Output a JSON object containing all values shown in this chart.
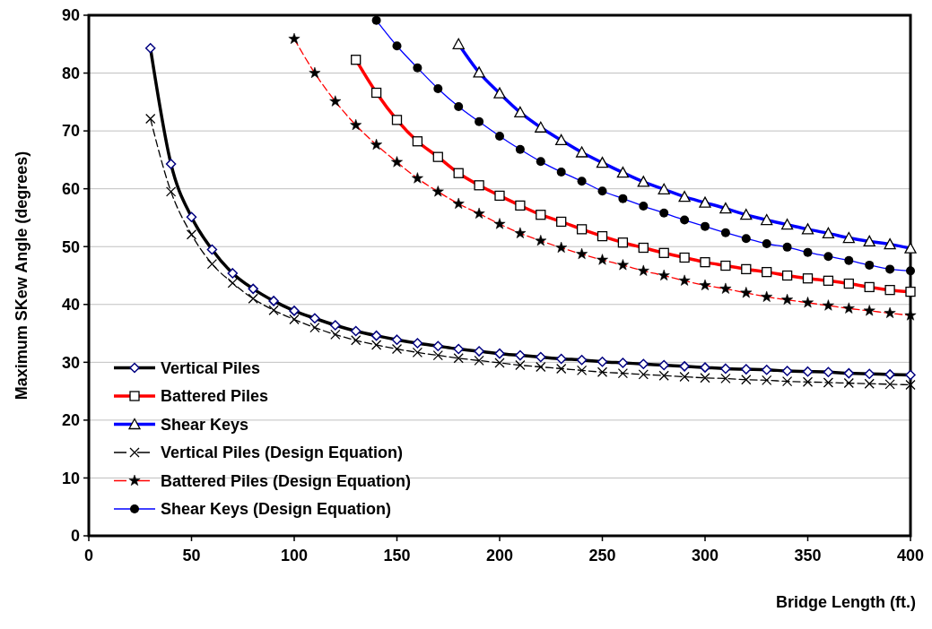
{
  "chart_data": {
    "type": "line",
    "xlabel": "Bridge Length (ft.)",
    "ylabel": "Maximum SKew Angle (degrees)",
    "xlim": [
      0,
      400
    ],
    "xticks": [
      0,
      50,
      100,
      150,
      200,
      250,
      300,
      350,
      400
    ],
    "ylim": [
      0,
      90
    ],
    "yticks": [
      0,
      10,
      20,
      30,
      40,
      50,
      60,
      70,
      80,
      90
    ],
    "grid": "y",
    "legend": "bottom left",
    "series": [
      {
        "name": "Vertical Piles",
        "color": "#000000",
        "marker": "diamond",
        "line_style": "solid",
        "x": [
          30,
          40,
          50,
          60,
          70,
          80,
          90,
          100,
          110,
          120,
          130,
          140,
          150,
          160,
          170,
          180,
          190,
          200,
          210,
          220,
          230,
          240,
          250,
          260,
          270,
          280,
          290,
          300,
          310,
          320,
          330,
          340,
          350,
          360,
          370,
          380,
          390,
          400
        ],
        "values": [
          84.3,
          64.3,
          55.1,
          49.5,
          45.4,
          42.7,
          40.6,
          38.9,
          37.6,
          36.4,
          35.4,
          34.6,
          33.9,
          33.3,
          32.8,
          32.3,
          31.9,
          31.5,
          31.2,
          30.9,
          30.6,
          30.4,
          30.1,
          29.9,
          29.7,
          29.5,
          29.3,
          29.1,
          28.9,
          28.8,
          28.7,
          28.5,
          28.4,
          28.3,
          28.1,
          28.0,
          27.9,
          27.8
        ]
      },
      {
        "name": "Battered Piles",
        "color": "#ff0000",
        "marker": "square",
        "line_style": "solid",
        "x": [
          130,
          140,
          150,
          160,
          170,
          180,
          190,
          200,
          210,
          220,
          230,
          240,
          250,
          260,
          270,
          280,
          290,
          300,
          310,
          320,
          330,
          340,
          350,
          360,
          370,
          380,
          390,
          400
        ],
        "values": [
          82.3,
          76.6,
          71.9,
          68.2,
          65.5,
          62.7,
          60.6,
          58.8,
          57.1,
          55.5,
          54.3,
          53.0,
          51.8,
          50.7,
          49.8,
          48.9,
          48.1,
          47.3,
          46.7,
          46.1,
          45.6,
          45.0,
          44.5,
          44.1,
          43.6,
          43.0,
          42.5,
          42.2
        ]
      },
      {
        "name": "Shear Keys",
        "color": "#0000ff",
        "marker": "triangle",
        "line_style": "solid",
        "x": [
          180,
          190,
          200,
          210,
          220,
          230,
          240,
          250,
          260,
          270,
          280,
          290,
          300,
          310,
          320,
          330,
          340,
          350,
          360,
          370,
          380,
          390,
          400
        ],
        "values": [
          85.0,
          80.1,
          76.5,
          73.2,
          70.6,
          68.4,
          66.3,
          64.5,
          62.8,
          61.2,
          59.9,
          58.6,
          57.6,
          56.6,
          55.5,
          54.6,
          53.8,
          53.0,
          52.3,
          51.5,
          50.9,
          50.4,
          49.7
        ]
      },
      {
        "name": "Vertical Piles (Design Equation)",
        "color": "#000000",
        "marker": "cross",
        "line_style": "dashed",
        "x": [
          30,
          40,
          50,
          60,
          70,
          80,
          90,
          100,
          110,
          120,
          130,
          140,
          150,
          160,
          170,
          180,
          190,
          200,
          210,
          220,
          230,
          240,
          250,
          260,
          270,
          280,
          290,
          300,
          310,
          320,
          330,
          340,
          350,
          360,
          370,
          380,
          390,
          400
        ],
        "values": [
          72.1,
          59.5,
          52.1,
          47.0,
          43.7,
          41.0,
          39.0,
          37.4,
          36.0,
          34.8,
          33.8,
          33.0,
          32.3,
          31.7,
          31.2,
          30.7,
          30.3,
          29.9,
          29.5,
          29.2,
          28.9,
          28.6,
          28.3,
          28.1,
          27.9,
          27.7,
          27.5,
          27.3,
          27.2,
          27.0,
          26.9,
          26.7,
          26.6,
          26.5,
          26.4,
          26.3,
          26.2,
          26.1
        ]
      },
      {
        "name": "Battered Piles (Design Equation)",
        "color": "#ff0000",
        "marker": "star",
        "line_style": "dashed",
        "x": [
          100,
          110,
          120,
          130,
          140,
          150,
          160,
          170,
          180,
          190,
          200,
          210,
          220,
          230,
          240,
          250,
          260,
          270,
          280,
          290,
          300,
          310,
          320,
          330,
          340,
          350,
          360,
          370,
          380,
          390,
          400
        ],
        "values": [
          85.9,
          80.0,
          75.1,
          71.0,
          67.6,
          64.6,
          61.8,
          59.5,
          57.4,
          55.7,
          53.9,
          52.3,
          51.0,
          49.8,
          48.7,
          47.7,
          46.8,
          45.8,
          45.0,
          44.1,
          43.3,
          42.7,
          42.0,
          41.3,
          40.8,
          40.3,
          39.8,
          39.3,
          38.9,
          38.5,
          38.1
        ]
      },
      {
        "name": "Shear Keys (Design Equation)",
        "color": "#0000ff",
        "marker": "circle",
        "line_style": "solid",
        "x": [
          140,
          150,
          160,
          170,
          180,
          190,
          200,
          210,
          220,
          230,
          240,
          250,
          260,
          270,
          280,
          290,
          300,
          310,
          320,
          330,
          340,
          350,
          360,
          370,
          380,
          390,
          400
        ],
        "values": [
          89.1,
          84.7,
          80.9,
          77.3,
          74.2,
          71.6,
          69.1,
          66.8,
          64.7,
          62.9,
          61.3,
          59.6,
          58.3,
          57.0,
          55.8,
          54.6,
          53.5,
          52.4,
          51.4,
          50.5,
          49.9,
          49.0,
          48.3,
          47.6,
          46.8,
          46.1,
          45.8
        ]
      }
    ]
  }
}
